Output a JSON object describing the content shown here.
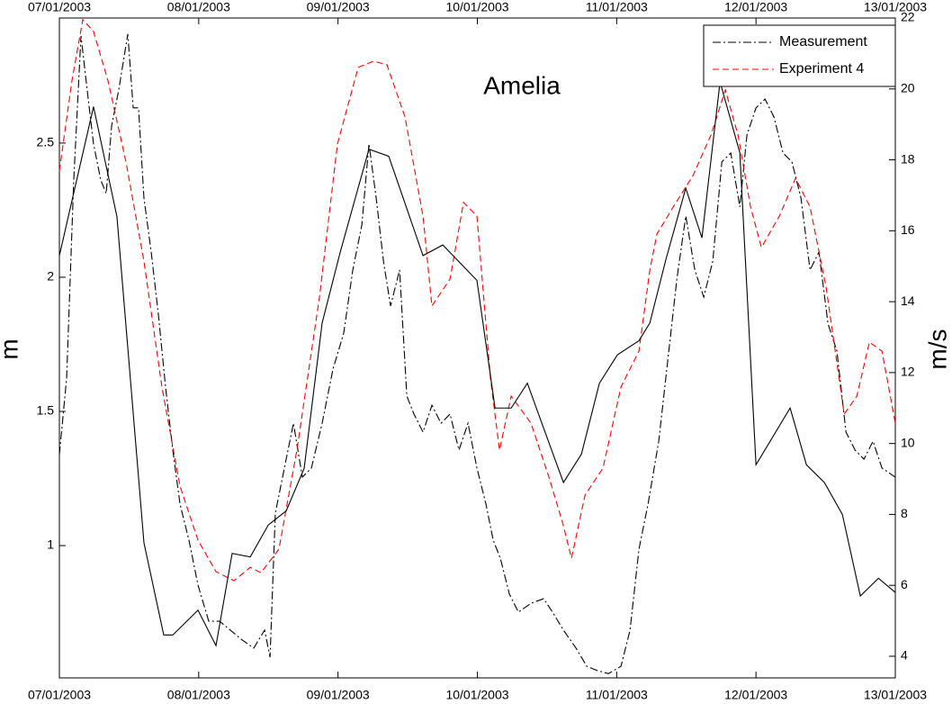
{
  "chart_data": {
    "type": "line",
    "title": "Amelia",
    "ylabel": "m",
    "y2label": "m/s",
    "xlim": [
      0,
      6
    ],
    "xticks": [
      {
        "value": 0,
        "label": "07/01/2003"
      },
      {
        "value": 1,
        "label": "08/01/2003"
      },
      {
        "value": 2,
        "label": "09/01/2003"
      },
      {
        "value": 3,
        "label": "10/01/2003"
      },
      {
        "value": 4,
        "label": "11/01/2003"
      },
      {
        "value": 5,
        "label": "12/01/2003"
      },
      {
        "value": 6,
        "label": "13/01/2003"
      }
    ],
    "ylim": [
      0.507,
      2.966
    ],
    "yticks": [
      1,
      1.5,
      2,
      2.5
    ],
    "y2lim": [
      3.39,
      22
    ],
    "y2ticks": [
      4,
      6,
      8,
      10,
      12,
      14,
      16,
      18,
      20,
      22
    ],
    "legend": "upper right",
    "series": [
      {
        "name": "Measurement",
        "color": "#000000",
        "style": "dash-dot",
        "x": [
          0,
          0.052,
          0.103,
          0.155,
          0.207,
          0.245,
          0.297,
          0.336,
          0.375,
          0.426,
          0.491,
          0.53,
          0.568,
          0.607,
          0.659,
          0.711,
          0.762,
          0.814,
          0.866,
          0.93,
          0.995,
          1.072,
          1.15,
          1.227,
          1.305,
          1.395,
          1.473,
          1.512,
          1.55,
          1.615,
          1.68,
          1.744,
          1.809,
          1.886,
          1.964,
          2.041,
          2.106,
          2.171,
          2.222,
          2.274,
          2.326,
          2.377,
          2.442,
          2.494,
          2.545,
          2.61,
          2.674,
          2.739,
          2.804,
          2.868,
          2.933,
          2.997,
          3.062,
          3.114,
          3.165,
          3.23,
          3.295,
          3.385,
          3.475,
          3.54,
          3.618,
          3.708,
          3.786,
          3.863,
          3.941,
          4.031,
          4.096,
          4.16,
          4.225,
          4.302,
          4.367,
          4.432,
          4.496,
          4.561,
          4.625,
          4.69,
          4.755,
          4.819,
          4.884,
          4.935,
          5.0,
          5.065,
          5.129,
          5.194,
          5.258,
          5.323,
          5.388,
          5.452,
          5.517,
          5.581,
          5.646,
          5.711,
          5.775,
          5.84,
          5.904,
          6.0
        ],
        "values": [
          1.339,
          1.624,
          2.362,
          2.899,
          2.664,
          2.497,
          2.362,
          2.312,
          2.564,
          2.698,
          2.906,
          2.631,
          2.631,
          2.295,
          2.094,
          1.859,
          1.591,
          1.356,
          1.154,
          1.02,
          0.853,
          0.718,
          0.718,
          0.685,
          0.651,
          0.618,
          0.685,
          0.584,
          1.121,
          1.289,
          1.456,
          1.255,
          1.289,
          1.456,
          1.658,
          1.792,
          2.027,
          2.195,
          2.497,
          2.295,
          2.06,
          1.893,
          2.027,
          1.557,
          1.49,
          1.423,
          1.523,
          1.456,
          1.49,
          1.356,
          1.456,
          1.289,
          1.154,
          1.02,
          0.953,
          0.819,
          0.752,
          0.785,
          0.802,
          0.752,
          0.685,
          0.618,
          0.55,
          0.534,
          0.523,
          0.55,
          0.685,
          0.987,
          1.154,
          1.389,
          1.691,
          1.993,
          2.228,
          2.027,
          1.926,
          2.06,
          2.43,
          2.463,
          2.262,
          2.53,
          2.631,
          2.664,
          2.597,
          2.463,
          2.43,
          2.295,
          2.027,
          2.094,
          1.826,
          1.725,
          1.423,
          1.356,
          1.322,
          1.389,
          1.289,
          1.255
        ]
      },
      {
        "name": "Experiment 4",
        "color": "#ff0000",
        "style": "dashed",
        "x": [
          0,
          0.09,
          0.168,
          0.245,
          0.349,
          0.478,
          0.607,
          0.736,
          0.866,
          0.995,
          1.124,
          1.253,
          1.37,
          1.447,
          1.576,
          1.705,
          1.867,
          1.996,
          2.145,
          2.255,
          2.351,
          2.481,
          2.61,
          2.674,
          2.804,
          2.901,
          2.997,
          3.094,
          3.159,
          3.243,
          3.385,
          3.514,
          3.611,
          3.676,
          3.773,
          3.902,
          4.031,
          4.16,
          4.238,
          4.289,
          4.406,
          4.548,
          4.677,
          4.78,
          4.871,
          4.961,
          5.039,
          5.168,
          5.284,
          5.388,
          5.504,
          5.633,
          5.724,
          5.814,
          5.904,
          6.0
        ],
        "values": [
          2.396,
          2.732,
          2.96,
          2.916,
          2.732,
          2.43,
          2.06,
          1.591,
          1.221,
          1.02,
          0.903,
          0.869,
          0.919,
          0.899,
          0.987,
          1.356,
          1.926,
          2.497,
          2.782,
          2.805,
          2.792,
          2.597,
          2.228,
          1.893,
          1.993,
          2.279,
          2.228,
          1.624,
          1.356,
          1.557,
          1.456,
          1.255,
          1.087,
          0.953,
          1.188,
          1.289,
          1.591,
          1.725,
          2.027,
          2.161,
          2.262,
          2.379,
          2.53,
          2.698,
          2.53,
          2.262,
          2.111,
          2.228,
          2.369,
          2.262,
          1.96,
          1.49,
          1.557,
          1.758,
          1.725,
          1.456
        ]
      },
      {
        "color": "#000000",
        "style": "solid",
        "axis": "y2",
        "x": [
          0,
          0.245,
          0.413,
          0.607,
          0.749,
          0.814,
          0.995,
          1.124,
          1.24,
          1.37,
          1.499,
          1.628,
          1.757,
          1.886,
          2.016,
          2.222,
          2.364,
          2.61,
          2.752,
          2.997,
          3.127,
          3.243,
          3.359,
          3.488,
          3.618,
          3.747,
          3.876,
          4.005,
          4.16,
          4.238,
          4.354,
          4.496,
          4.612,
          4.742,
          4.884,
          5.0,
          5.245,
          5.362,
          5.491,
          5.62,
          5.749,
          5.879,
          6.0
        ],
        "values": [
          15.3,
          19.5,
          16.4,
          7.2,
          4.6,
          4.6,
          5.3,
          4.3,
          6.9,
          6.8,
          7.7,
          8.1,
          9.3,
          13.4,
          15.4,
          18.3,
          18.1,
          15.3,
          15.6,
          14.6,
          11.0,
          11.0,
          11.7,
          10.3,
          8.9,
          9.7,
          11.7,
          12.5,
          12.9,
          13.4,
          15.2,
          17.2,
          15.8,
          20.2,
          18.2,
          9.4,
          11.0,
          9.4,
          8.9,
          8.0,
          5.7,
          6.2,
          5.8
        ]
      }
    ]
  }
}
